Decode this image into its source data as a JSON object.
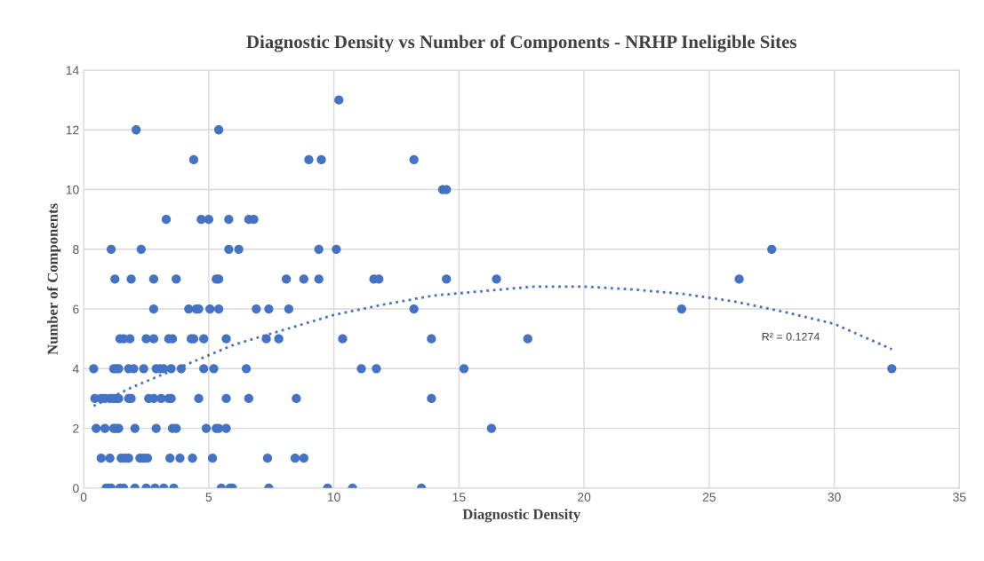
{
  "chart_data": {
    "type": "scatter",
    "title": "Diagnostic Density vs Number of Components - NRHP Ineligible Sites",
    "xlabel": "Diagnostic Density",
    "ylabel": "Number of Components",
    "xlim": [
      0,
      35
    ],
    "xticks": [
      0,
      5,
      10,
      15,
      20,
      25,
      30,
      35
    ],
    "ylim": [
      0,
      14
    ],
    "yticks": [
      0,
      2,
      4,
      6,
      8,
      10,
      12,
      14
    ],
    "grid": true,
    "marker": "circle",
    "series": [
      {
        "color": "#4472c4",
        "x": [
          2.1,
          5.4,
          10.2,
          4.4,
          9.0,
          9.5,
          13.2,
          14.35,
          14.5,
          3.3,
          4.7,
          5.0,
          5.8,
          6.6,
          6.8,
          1.1,
          2.3,
          5.8,
          6.2,
          9.4,
          10.1,
          27.5,
          1.25,
          1.9,
          2.8,
          3.7,
          5.3,
          5.4,
          8.1,
          8.8,
          9.4,
          11.6,
          11.8,
          14.5,
          16.5,
          26.2,
          2.8,
          4.2,
          4.5,
          4.6,
          5.05,
          5.4,
          6.9,
          7.4,
          8.2,
          13.2,
          23.9,
          1.45,
          1.6,
          1.85,
          2.5,
          2.8,
          3.4,
          3.55,
          4.3,
          4.4,
          4.8,
          5.7,
          7.3,
          7.8,
          10.35,
          13.9,
          17.75,
          0.4,
          1.2,
          1.3,
          1.4,
          1.8,
          2.0,
          2.4,
          2.9,
          3.05,
          3.2,
          3.5,
          3.9,
          4.8,
          5.2,
          6.5,
          11.1,
          11.7,
          15.2,
          32.3,
          0.45,
          0.7,
          0.85,
          1.05,
          1.2,
          1.3,
          1.4,
          1.8,
          1.9,
          2.6,
          2.8,
          3.1,
          3.4,
          3.5,
          4.6,
          5.7,
          6.6,
          8.5,
          13.9,
          0.5,
          0.85,
          1.2,
          1.3,
          1.4,
          2.05,
          2.9,
          3.55,
          3.7,
          4.9,
          5.3,
          5.4,
          5.7,
          16.3,
          0.7,
          1.05,
          1.5,
          1.65,
          1.8,
          2.25,
          2.4,
          2.55,
          3.45,
          3.85,
          4.35,
          5.15,
          7.35,
          8.45,
          8.8,
          0.9,
          1.0,
          1.1,
          1.45,
          1.6,
          2.05,
          2.5,
          2.85,
          3.2,
          3.6,
          5.5,
          5.85,
          5.95,
          7.4,
          9.75,
          10.75,
          13.5
        ],
        "values": [
          12,
          12,
          13,
          11,
          11,
          11,
          11,
          10,
          10,
          9,
          9,
          9,
          9,
          9,
          9,
          8,
          8,
          8,
          8,
          8,
          8,
          8,
          7,
          7,
          7,
          7,
          7,
          7,
          7,
          7,
          7,
          7,
          7,
          7,
          7,
          7,
          6,
          6,
          6,
          6,
          6,
          6,
          6,
          6,
          6,
          6,
          6,
          5,
          5,
          5,
          5,
          5,
          5,
          5,
          5,
          5,
          5,
          5,
          5,
          5,
          5,
          5,
          5,
          4,
          4,
          4,
          4,
          4,
          4,
          4,
          4,
          4,
          4,
          4,
          4,
          4,
          4,
          4,
          4,
          4,
          4,
          4,
          3,
          3,
          3,
          3,
          3,
          3,
          3,
          3,
          3,
          3,
          3,
          3,
          3,
          3,
          3,
          3,
          3,
          3,
          3,
          2,
          2,
          2,
          2,
          2,
          2,
          2,
          2,
          2,
          2,
          2,
          2,
          2,
          2,
          1,
          1,
          1,
          1,
          1,
          1,
          1,
          1,
          1,
          1,
          1,
          1,
          1,
          1,
          1,
          0,
          0,
          0,
          0,
          0,
          0,
          0,
          0,
          0,
          0,
          0,
          0,
          0,
          0,
          0,
          0,
          0
        ]
      },
      {
        "type": "line",
        "color": "#4472c4",
        "line_style": "dotted",
        "marker": "none",
        "x": [
          0.4,
          2,
          4,
          6,
          8,
          10,
          12,
          14,
          16,
          18,
          20,
          22,
          24,
          26,
          28,
          30,
          32.3
        ],
        "values": [
          2.75,
          3.4,
          4.1,
          4.8,
          5.3,
          5.8,
          6.15,
          6.45,
          6.6,
          6.75,
          6.75,
          6.65,
          6.5,
          6.25,
          5.9,
          5.5,
          4.65
        ]
      }
    ],
    "annotations": [
      "R² = 0.1274"
    ]
  }
}
